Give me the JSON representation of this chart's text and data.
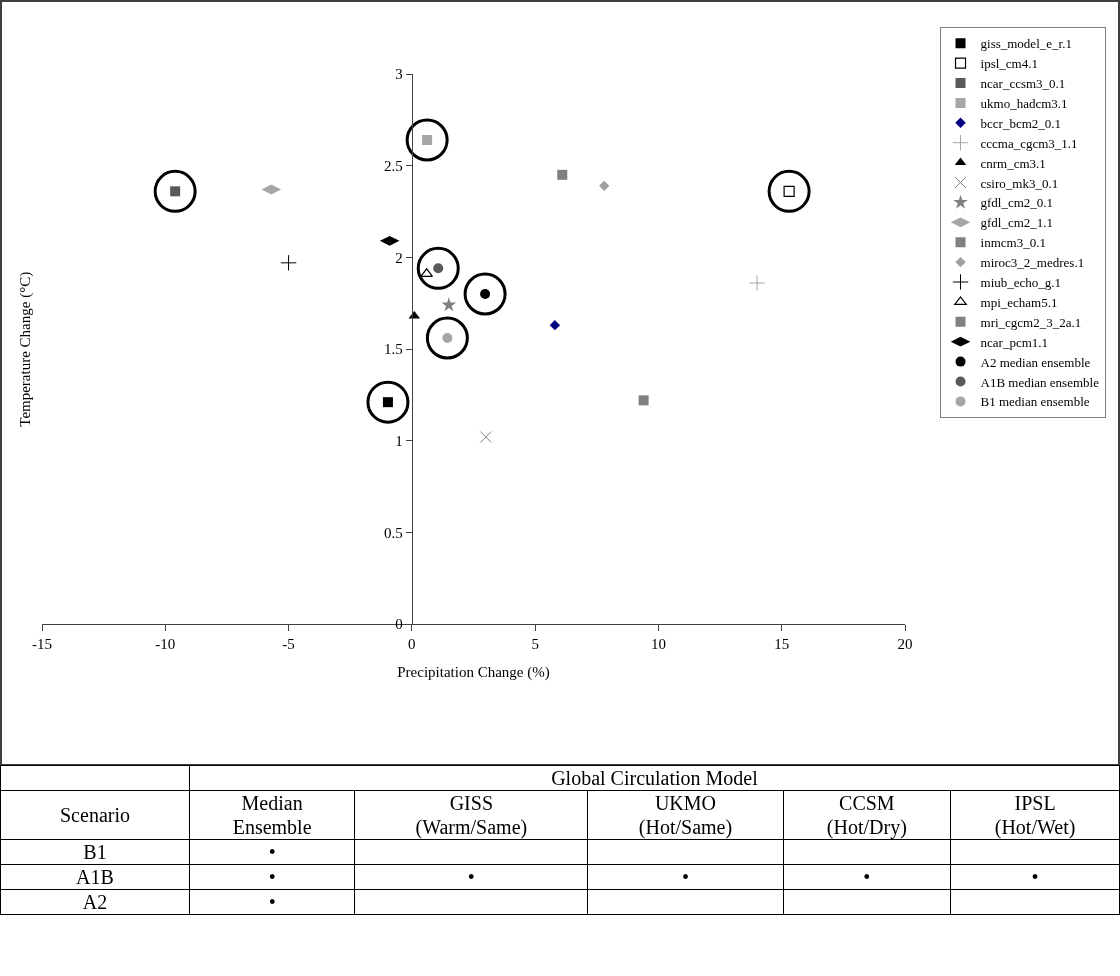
{
  "chart_data": [
    {
      "type": "scatter",
      "xlabel": "Precipitation Change (%)",
      "ylabel": "Temperature Change (°C)",
      "xlim": [
        -15,
        20
      ],
      "xticks": [
        -15,
        -10,
        -5,
        0,
        5,
        10,
        15,
        20
      ],
      "ylim": [
        0,
        3
      ],
      "yticks": [
        0,
        0.5,
        1,
        1.5,
        2,
        2.5,
        3
      ],
      "grid": false,
      "legend": "right",
      "series": [
        {
          "name": "giss_model_e_r.1",
          "color": "#000000",
          "marker": "square",
          "x": [
            -0.97
          ],
          "values": [
            1.21
          ]
        },
        {
          "name": "ipsl_cm4.1",
          "color": "#ffffff",
          "marker": "square",
          "x": [
            15.3
          ],
          "values": [
            2.36
          ]
        },
        {
          "name": "ncar_ccsm3_0.1",
          "color": "#595959",
          "marker": "square",
          "x": [
            -9.6
          ],
          "values": [
            2.36
          ]
        },
        {
          "name": "ukmo_hadcm3.1",
          "color": "#a6a6a6",
          "marker": "square",
          "x": [
            0.62
          ],
          "values": [
            2.64
          ]
        },
        {
          "name": "bccr_bcm2_0.1",
          "color": "#000080",
          "marker": "diamond",
          "x": [
            5.8
          ],
          "values": [
            1.63
          ]
        },
        {
          "name": "cccma_cgcm3_1.1",
          "color": "#a6a6a6",
          "marker": "cross",
          "x": [
            14.0
          ],
          "values": [
            1.86
          ]
        },
        {
          "name": "cnrm_cm3.1",
          "color": "#000000",
          "marker": "triangle",
          "x": [
            0.1
          ],
          "values": [
            1.68
          ]
        },
        {
          "name": "csiro_mk3_0.1",
          "color": "#808080",
          "marker": "x",
          "x": [
            3.0
          ],
          "values": [
            1.02
          ]
        },
        {
          "name": "gfdl_cm2_0.1",
          "color": "#808080",
          "marker": "star",
          "x": [
            1.5
          ],
          "values": [
            1.74
          ]
        },
        {
          "name": "gfdl_cm2_1.1",
          "color": "#a6a6a6",
          "x": [
            -5.7
          ],
          "values": [
            2.37
          ]
        },
        {
          "name": "inmcm3_0.1",
          "color": "#808080",
          "marker": "square",
          "x": [
            6.1
          ],
          "values": [
            2.45
          ]
        },
        {
          "name": "miroc3_2_medres.1",
          "color": "#a0a0a0",
          "marker": "diamond",
          "x": [
            7.8
          ],
          "values": [
            2.39
          ]
        },
        {
          "name": "miub_echo_g.1",
          "color": "#000000",
          "marker": "cross",
          "x": [
            -5.0
          ],
          "values": [
            1.97
          ]
        },
        {
          "name": "mpi_echam5.1",
          "color": "#ffffff",
          "marker": "triangle",
          "x": [
            0.6
          ],
          "values": [
            1.91
          ]
        },
        {
          "name": "mri_cgcm2_3_2a.1",
          "color": "#808080",
          "marker": "square",
          "x": [
            9.4
          ],
          "values": [
            1.22
          ]
        },
        {
          "name": "ncar_pcm1.1",
          "color": "#000000",
          "x": [
            -0.9
          ],
          "values": [
            2.09
          ]
        },
        {
          "name": "A2 median ensemble",
          "color": "#000000",
          "marker": "circle",
          "x": [
            2.97
          ],
          "values": [
            1.8
          ]
        },
        {
          "name": "A1B median ensemble",
          "color": "#595959",
          "marker": "circle",
          "x": [
            1.07
          ],
          "values": [
            1.94
          ]
        },
        {
          "name": "B1 median ensemble",
          "color": "#a6a6a6",
          "marker": "circle",
          "x": [
            1.44
          ],
          "values": [
            1.56
          ]
        },
        {
          "color": "#000000",
          "marker": "circle",
          "x": [
            -0.97,
            15.3,
            -9.6,
            0.62,
            2.97,
            1.07,
            1.44
          ],
          "values": [
            1.21,
            2.36,
            2.36,
            2.64,
            1.8,
            1.94,
            1.56
          ]
        }
      ]
    },
    {
      "type": "other",
      "title": "Global Circulation Model",
      "ylabel": "Scenario",
      "categories": [
        "Median\nEnsemble",
        "GISS\n(Warm/Same)",
        "UKMO\n(Hot/Same)",
        "CCSM\n(Hot/Dry)",
        "IPSL\n(Hot/Wet)"
      ],
      "y_categories": [
        "B1",
        "A1B",
        "A2"
      ],
      "cell_labels": [
        [
          "•",
          null,
          null,
          null,
          null
        ],
        [
          "•",
          "•",
          "•",
          "•",
          "•"
        ],
        [
          "•",
          null,
          null,
          null,
          null
        ]
      ]
    }
  ]
}
